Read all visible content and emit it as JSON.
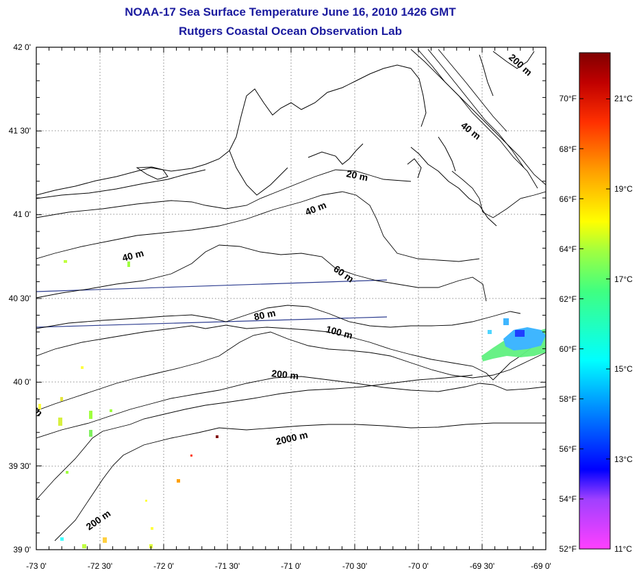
{
  "title": "NOAA-17 Sea Surface Temperature June 16, 2010 1426 GMT",
  "subtitle": "Rutgers Coastal Ocean Observation Lab",
  "lat_labels": [
    "42 0'",
    "41 30'",
    "41 0'",
    "40 30'",
    "40 0'",
    "39 30'",
    "39 0'"
  ],
  "lon_labels": [
    "-73 0'",
    "-72 30'",
    "-72 0'",
    "-71 30'",
    "-71 0'",
    "-70 30'",
    "-70 0'",
    "-69 30'",
    "-69 0'"
  ],
  "map_extent": {
    "lon": [
      -73.0,
      -69.0
    ],
    "lat": [
      39.0,
      42.0
    ]
  },
  "grid": "dotted",
  "contours": [
    {
      "label": "20 m"
    },
    {
      "label": "40 m"
    },
    {
      "label": "40 m"
    },
    {
      "label": "40 m"
    },
    {
      "label": "60 m"
    },
    {
      "label": "80 m"
    },
    {
      "label": "100 m"
    },
    {
      "label": "200 m"
    },
    {
      "label": "200 m"
    },
    {
      "label": "200 m"
    },
    {
      "label": "2000 m"
    }
  ],
  "colorbar": {
    "fahrenheit_labels": [
      "52°F",
      "54°F",
      "56°F",
      "58°F",
      "60°F",
      "62°F",
      "64°F",
      "66°F",
      "68°F",
      "70°F"
    ],
    "celsius_labels": [
      "11°C",
      "13°C",
      "15°C",
      "17°C",
      "19°C",
      "21°C"
    ],
    "colors": [
      "#ff40ff",
      "#a040ff",
      "#0000ff",
      "#00a0ff",
      "#00ffff",
      "#40ff80",
      "#a0ff40",
      "#ffff00",
      "#ffa000",
      "#ff3000",
      "#c00000",
      "#800000"
    ]
  }
}
